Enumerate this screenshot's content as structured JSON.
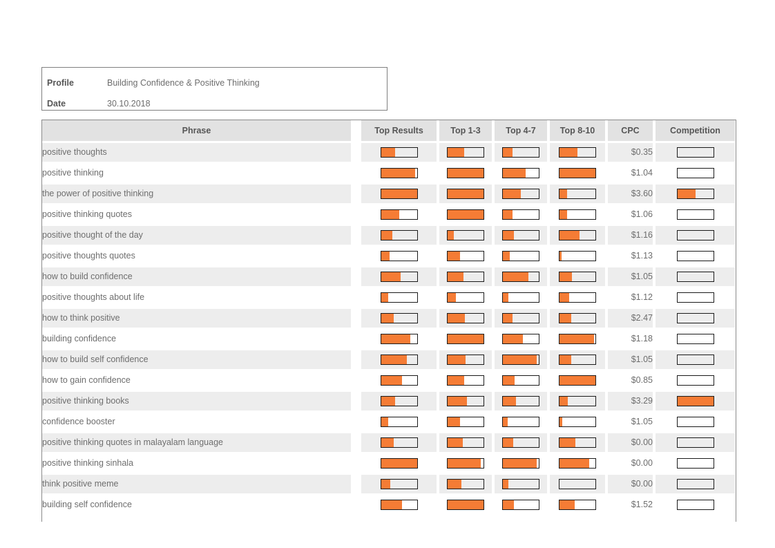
{
  "profile_box": {
    "profile_label": "Profile",
    "profile_value": "Building Confidence & Positive Thinking",
    "date_label": "Date",
    "date_value": "30.10.2018"
  },
  "table": {
    "columns": [
      "Phrase",
      "Top Results",
      "Top 1-3",
      "Top 4-7",
      "Top 8-10",
      "CPC",
      "Competition"
    ],
    "rows": [
      {
        "phrase": "positive thoughts",
        "top_results": 40,
        "top_1_3": 47,
        "top_4_7": 26,
        "top_8_10": 50,
        "cpc": "$0.35",
        "competition": 0
      },
      {
        "phrase": "positive thinking",
        "top_results": 96,
        "top_1_3": 100,
        "top_4_7": 63,
        "top_8_10": 100,
        "cpc": "$1.04",
        "competition": 0
      },
      {
        "phrase": "the power of positive thinking",
        "top_results": 100,
        "top_1_3": 100,
        "top_4_7": 50,
        "top_8_10": 21,
        "cpc": "$3.60",
        "competition": 50
      },
      {
        "phrase": "positive thinking quotes",
        "top_results": 51,
        "top_1_3": 100,
        "top_4_7": 27,
        "top_8_10": 21,
        "cpc": "$1.06",
        "competition": 0
      },
      {
        "phrase": "positive thought of the day",
        "top_results": 31,
        "top_1_3": 17,
        "top_4_7": 30,
        "top_8_10": 55,
        "cpc": "$1.16",
        "competition": 0
      },
      {
        "phrase": "positive thoughts quotes",
        "top_results": 24,
        "top_1_3": 35,
        "top_4_7": 19,
        "top_8_10": 6,
        "cpc": "$1.13",
        "competition": 0
      },
      {
        "phrase": "how to build confidence",
        "top_results": 55,
        "top_1_3": 45,
        "top_4_7": 72,
        "top_8_10": 35,
        "cpc": "$1.05",
        "competition": 0
      },
      {
        "phrase": "positive thoughts about life",
        "top_results": 21,
        "top_1_3": 23,
        "top_4_7": 15,
        "top_8_10": 26,
        "cpc": "$1.12",
        "competition": 0
      },
      {
        "phrase": "how to think positive",
        "top_results": 36,
        "top_1_3": 48,
        "top_4_7": 26,
        "top_8_10": 32,
        "cpc": "$2.47",
        "competition": 0
      },
      {
        "phrase": "building confidence",
        "top_results": 82,
        "top_1_3": 100,
        "top_4_7": 56,
        "top_8_10": 97,
        "cpc": "$1.18",
        "competition": 0
      },
      {
        "phrase": "how to build self confidence",
        "top_results": 72,
        "top_1_3": 50,
        "top_4_7": 95,
        "top_8_10": 32,
        "cpc": "$1.05",
        "competition": 0
      },
      {
        "phrase": "how to gain confidence",
        "top_results": 59,
        "top_1_3": 47,
        "top_4_7": 32,
        "top_8_10": 100,
        "cpc": "$0.85",
        "competition": 0
      },
      {
        "phrase": "positive thinking books",
        "top_results": 40,
        "top_1_3": 53,
        "top_4_7": 37,
        "top_8_10": 23,
        "cpc": "$3.29",
        "competition": 100
      },
      {
        "phrase": "confidence booster",
        "top_results": 21,
        "top_1_3": 35,
        "top_4_7": 13,
        "top_8_10": 8,
        "cpc": "$1.05",
        "competition": 0
      },
      {
        "phrase": "positive thinking quotes in malayalam language",
        "top_results": 36,
        "top_1_3": 43,
        "top_4_7": 28,
        "top_8_10": 45,
        "cpc": "$0.00",
        "competition": 0
      },
      {
        "phrase": "positive thinking sinhala",
        "top_results": 100,
        "top_1_3": 93,
        "top_4_7": 95,
        "top_8_10": 82,
        "cpc": "$0.00",
        "competition": 0
      },
      {
        "phrase": "think positive meme",
        "top_results": 26,
        "top_1_3": 39,
        "top_4_7": 15,
        "top_8_10": 0,
        "cpc": "$0.00",
        "competition": 0
      },
      {
        "phrase": "building self confidence",
        "top_results": 59,
        "top_1_3": 100,
        "top_4_7": 31,
        "top_8_10": 43,
        "cpc": "$1.52",
        "competition": 0
      }
    ]
  },
  "colors": {
    "bar_fill": "#f57c35",
    "bar_border": "#1a1a1a",
    "row_stripe": "#ededed",
    "header_bg": "#e2e2e2",
    "header_text": "#565656",
    "body_text": "#6e6e6e",
    "box_border": "#7f7f7f"
  }
}
